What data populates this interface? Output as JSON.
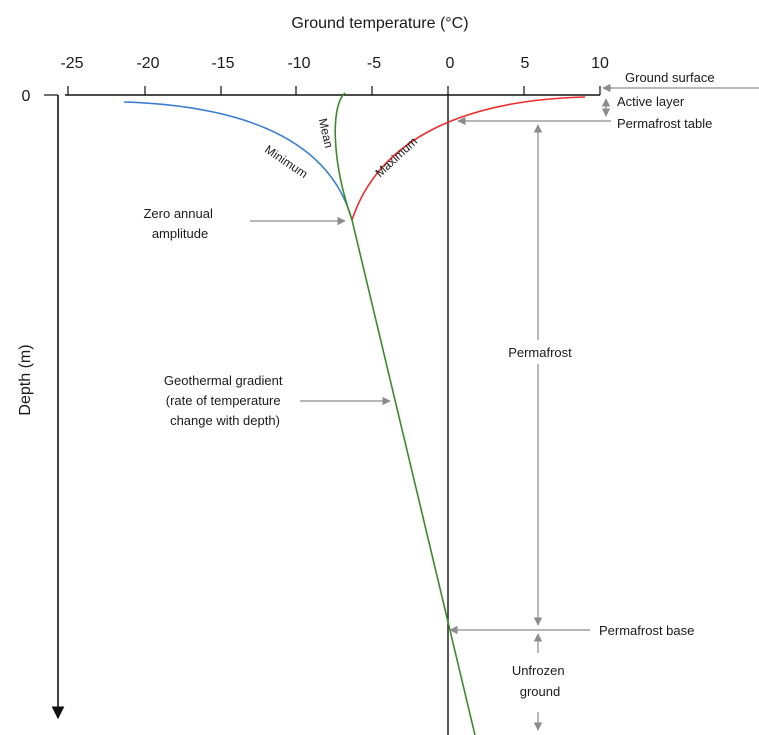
{
  "title": "Ground temperature (°C)",
  "x_ticks": [
    "-25",
    "-20",
    "-15",
    "-10",
    "-5",
    "0",
    "5",
    "10"
  ],
  "y_tick": "0",
  "y_label": "Depth (m)",
  "curves": {
    "minimum": "Minimum",
    "mean": "Mean",
    "maximum": "Maximum"
  },
  "annotations": {
    "ground_surface": "Ground surface",
    "active_layer": "Active layer",
    "permafrost_table": "Permafrost table",
    "zero_amplitude_1": "Zero annual",
    "zero_amplitude_2": "amplitude",
    "permafrost": "Permafrost",
    "gradient_1": "Geothermal gradient",
    "gradient_2": "(rate of temperature",
    "gradient_3": "change with depth)",
    "permafrost_base": "Permafrost base",
    "unfrozen_1": "Unfrozen",
    "unfrozen_2": "ground"
  },
  "colors": {
    "minimum": "#3f7fcf",
    "mean": "#3a8a2a",
    "maximum": "#ee2b2b",
    "axis": "#111111",
    "annotation": "#8c8c8c"
  }
}
